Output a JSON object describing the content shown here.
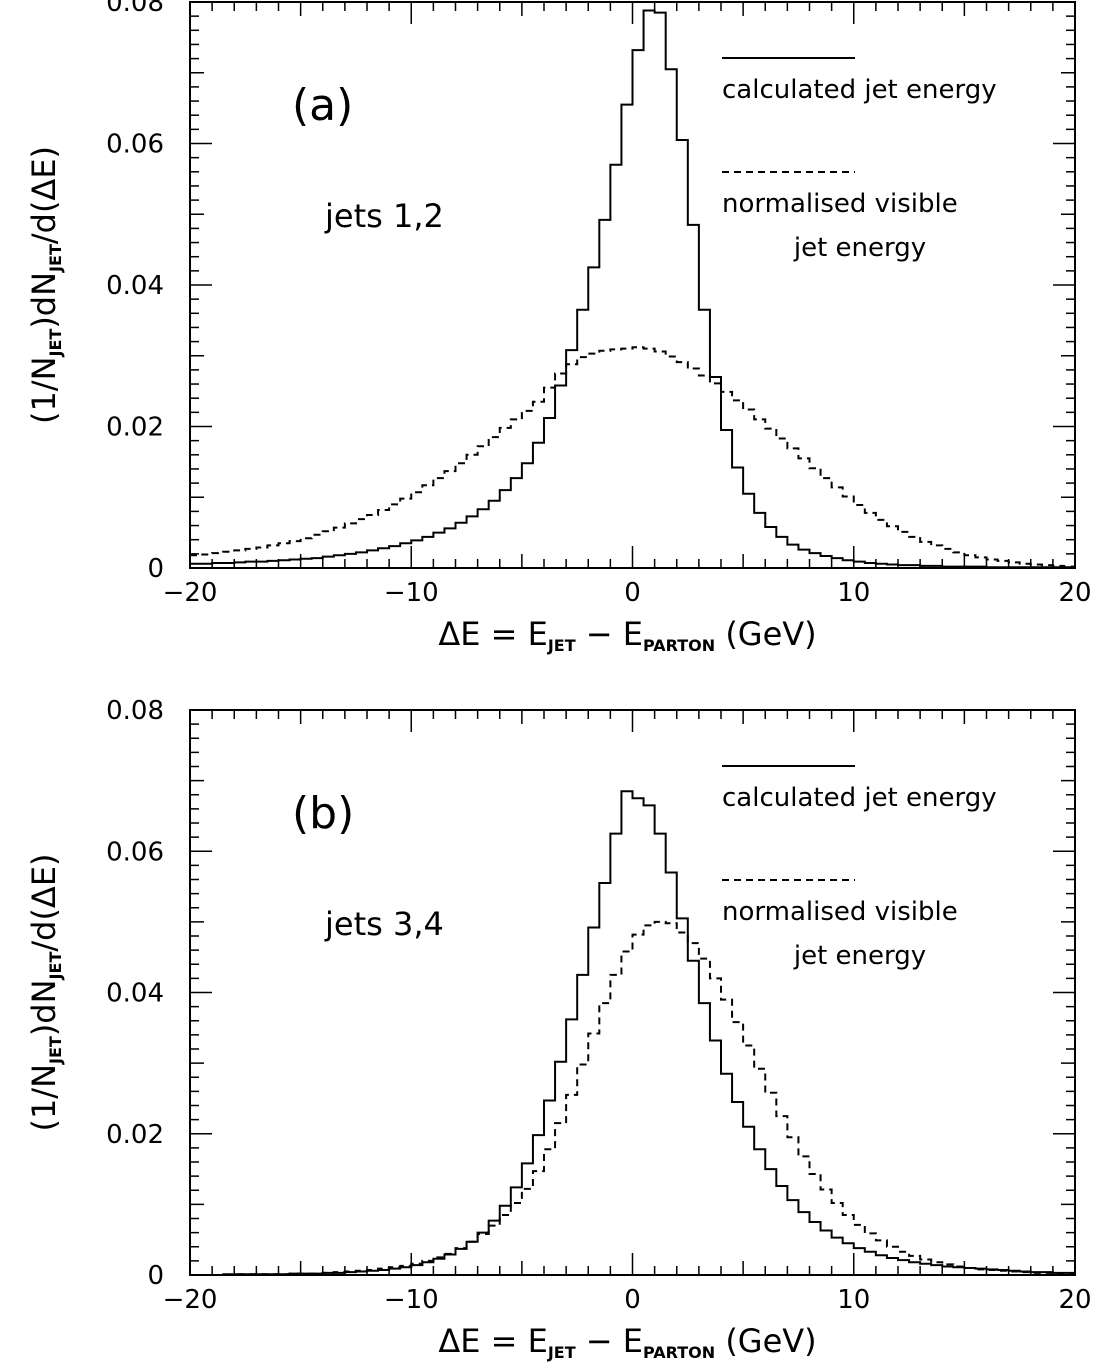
{
  "chart_data": [
    {
      "type": "line",
      "panel_label": "(a)",
      "annotation": "jets 1,2",
      "xlabel": {
        "main": "ΔE = E",
        "sub1": "JET",
        "mid": " − E",
        "sub2": "PARTON",
        "tail": " (GeV)"
      },
      "ylabel": {
        "p1": "(1/N",
        "s1": "JET",
        "p2": ")dN",
        "s2": "JET",
        "p3": "/d(ΔE)"
      },
      "xlim": [
        -20,
        20
      ],
      "ylim": [
        0,
        0.08
      ],
      "xticks": [
        -20,
        -10,
        0,
        10,
        20
      ],
      "xtick_labels": [
        "−20",
        "−10",
        "0",
        "10",
        "20"
      ],
      "yticks": [
        0,
        0.02,
        0.04,
        0.06,
        0.08
      ],
      "ytick_labels": [
        "0",
        "0.02",
        "0.04",
        "0.06",
        "0.08"
      ],
      "bin_width": 0.5,
      "x": [
        -19.75,
        -19.25,
        -18.75,
        -18.25,
        -17.75,
        -17.25,
        -16.75,
        -16.25,
        -15.75,
        -15.25,
        -14.75,
        -14.25,
        -13.75,
        -13.25,
        -12.75,
        -12.25,
        -11.75,
        -11.25,
        -10.75,
        -10.25,
        -9.75,
        -9.25,
        -8.75,
        -8.25,
        -7.75,
        -7.25,
        -6.75,
        -6.25,
        -5.75,
        -5.25,
        -4.75,
        -4.25,
        -3.75,
        -3.25,
        -2.75,
        -2.25,
        -1.75,
        -1.25,
        -0.75,
        -0.25,
        0.25,
        0.75,
        1.25,
        1.75,
        2.25,
        2.75,
        3.25,
        3.75,
        4.25,
        4.75,
        5.25,
        5.75,
        6.25,
        6.75,
        7.25,
        7.75,
        8.25,
        8.75,
        9.25,
        9.75,
        10.25,
        10.75,
        11.25,
        11.75,
        12.25,
        12.75,
        13.25,
        13.75,
        14.25,
        14.75,
        15.25,
        15.75,
        16.25,
        16.75,
        17.25,
        17.75,
        18.25,
        18.75,
        19.25,
        19.75
      ],
      "series": [
        {
          "name": "calculated jet energy",
          "style": "solid",
          "values": [
            0.0006,
            0.0006,
            0.0007,
            0.0007,
            0.0008,
            0.0009,
            0.0009,
            0.001,
            0.0011,
            0.0012,
            0.0013,
            0.0014,
            0.0016,
            0.0018,
            0.002,
            0.0022,
            0.0025,
            0.0028,
            0.0031,
            0.0035,
            0.0039,
            0.0044,
            0.005,
            0.0056,
            0.0064,
            0.0073,
            0.0083,
            0.0095,
            0.011,
            0.0127,
            0.0148,
            0.0177,
            0.0212,
            0.0258,
            0.0308,
            0.0365,
            0.0425,
            0.0492,
            0.057,
            0.0655,
            0.0732,
            0.0788,
            0.0785,
            0.0705,
            0.0605,
            0.0485,
            0.0365,
            0.027,
            0.0195,
            0.0142,
            0.0105,
            0.0078,
            0.0058,
            0.0044,
            0.0033,
            0.0026,
            0.0021,
            0.0017,
            0.0014,
            0.0011,
            0.0009,
            0.0007,
            0.0006,
            0.0005,
            0.0004,
            0.0004,
            0.0003,
            0.0003,
            0.0002,
            0.0002,
            0.0002,
            0.0002,
            0.0001,
            0.0001,
            0.0001,
            0.0001,
            0.0001,
            0.0001,
            0.0001,
            0.0001
          ]
        },
        {
          "name": "normalised visible jet energy",
          "style": "dashed",
          "values": [
            0.0018,
            0.0019,
            0.0021,
            0.0023,
            0.0025,
            0.0027,
            0.0029,
            0.0032,
            0.0035,
            0.0038,
            0.0042,
            0.0047,
            0.0052,
            0.0057,
            0.0063,
            0.0069,
            0.0075,
            0.0082,
            0.009,
            0.0098,
            0.0107,
            0.0117,
            0.0127,
            0.0137,
            0.0148,
            0.016,
            0.0172,
            0.0185,
            0.0198,
            0.021,
            0.0222,
            0.0235,
            0.0255,
            0.0275,
            0.0288,
            0.0298,
            0.0303,
            0.0307,
            0.0309,
            0.031,
            0.0312,
            0.031,
            0.0306,
            0.0299,
            0.0291,
            0.0282,
            0.0272,
            0.0261,
            0.0249,
            0.0237,
            0.0224,
            0.021,
            0.0197,
            0.0183,
            0.0169,
            0.0155,
            0.0141,
            0.0127,
            0.0114,
            0.0101,
            0.0089,
            0.0078,
            0.0068,
            0.0059,
            0.0051,
            0.0044,
            0.0037,
            0.0032,
            0.0027,
            0.0022,
            0.0018,
            0.0015,
            0.0012,
            0.001,
            0.0008,
            0.0006,
            0.0005,
            0.0004,
            0.0003,
            0.0002
          ]
        }
      ],
      "legend": [
        {
          "label_lines": [
            "calculated jet energy"
          ],
          "style": "solid"
        },
        {
          "label_lines": [
            "normalised visible",
            "jet energy"
          ],
          "style": "dashed"
        }
      ]
    },
    {
      "type": "line",
      "panel_label": "(b)",
      "annotation": "jets 3,4",
      "xlabel": {
        "main": "ΔE = E",
        "sub1": "JET",
        "mid": " − E",
        "sub2": "PARTON",
        "tail": " (GeV)"
      },
      "ylabel": {
        "p1": "(1/N",
        "s1": "JET",
        "p2": ")dN",
        "s2": "JET",
        "p3": "/d(ΔE)"
      },
      "xlim": [
        -20,
        20
      ],
      "ylim": [
        0,
        0.08
      ],
      "xticks": [
        -20,
        -10,
        0,
        10,
        20
      ],
      "xtick_labels": [
        "−20",
        "−10",
        "0",
        "10",
        "20"
      ],
      "yticks": [
        0,
        0.02,
        0.04,
        0.06,
        0.08
      ],
      "ytick_labels": [
        "0",
        "0.02",
        "0.04",
        "0.06",
        "0.08"
      ],
      "bin_width": 0.5,
      "x": [
        -19.75,
        -19.25,
        -18.75,
        -18.25,
        -17.75,
        -17.25,
        -16.75,
        -16.25,
        -15.75,
        -15.25,
        -14.75,
        -14.25,
        -13.75,
        -13.25,
        -12.75,
        -12.25,
        -11.75,
        -11.25,
        -10.75,
        -10.25,
        -9.75,
        -9.25,
        -8.75,
        -8.25,
        -7.75,
        -7.25,
        -6.75,
        -6.25,
        -5.75,
        -5.25,
        -4.75,
        -4.25,
        -3.75,
        -3.25,
        -2.75,
        -2.25,
        -1.75,
        -1.25,
        -0.75,
        -0.25,
        0.25,
        0.75,
        1.25,
        1.75,
        2.25,
        2.75,
        3.25,
        3.75,
        4.25,
        4.75,
        5.25,
        5.75,
        6.25,
        6.75,
        7.25,
        7.75,
        8.25,
        8.75,
        9.25,
        9.75,
        10.25,
        10.75,
        11.25,
        11.75,
        12.25,
        12.75,
        13.25,
        13.75,
        14.25,
        14.75,
        15.25,
        15.75,
        16.25,
        16.75,
        17.25,
        17.75,
        18.25,
        18.75,
        19.25,
        19.75
      ],
      "series": [
        {
          "name": "calculated jet energy",
          "style": "solid",
          "values": [
            0,
            0,
            0,
            0.0001,
            0.0001,
            0.0001,
            0.0001,
            0.0001,
            0.0001,
            0.0002,
            0.0002,
            0.0002,
            0.0003,
            0.0003,
            0.0004,
            0.0005,
            0.0006,
            0.0007,
            0.0009,
            0.0011,
            0.0014,
            0.0018,
            0.0023,
            0.0029,
            0.0037,
            0.0047,
            0.006,
            0.0077,
            0.0098,
            0.0124,
            0.0158,
            0.0198,
            0.0247,
            0.0302,
            0.0362,
            0.0425,
            0.0492,
            0.0555,
            0.0625,
            0.0685,
            0.0675,
            0.0665,
            0.0625,
            0.057,
            0.0505,
            0.0445,
            0.0385,
            0.0332,
            0.0285,
            0.0245,
            0.021,
            0.0178,
            0.015,
            0.0126,
            0.0106,
            0.0089,
            0.0075,
            0.0063,
            0.0053,
            0.0045,
            0.0038,
            0.0033,
            0.0028,
            0.0024,
            0.0021,
            0.0018,
            0.0016,
            0.0014,
            0.0012,
            0.0011,
            0.001,
            0.0009,
            0.0008,
            0.0007,
            0.0006,
            0.0005,
            0.0004,
            0.0004,
            0.0003,
            0.0003
          ]
        },
        {
          "name": "normalised visible jet energy",
          "style": "dashed",
          "values": [
            0,
            0,
            0,
            0,
            0.0001,
            0.0001,
            0.0001,
            0.0001,
            0.0001,
            0.0002,
            0.0002,
            0.0002,
            0.0003,
            0.0004,
            0.0005,
            0.0006,
            0.0007,
            0.0009,
            0.0011,
            0.0013,
            0.0016,
            0.002,
            0.0025,
            0.003,
            0.0038,
            0.0047,
            0.0058,
            0.007,
            0.0085,
            0.0102,
            0.0122,
            0.0147,
            0.0178,
            0.0215,
            0.0255,
            0.0298,
            0.0342,
            0.0385,
            0.0425,
            0.0458,
            0.0482,
            0.0495,
            0.05,
            0.0498,
            0.0485,
            0.047,
            0.0448,
            0.042,
            0.039,
            0.0358,
            0.0325,
            0.0292,
            0.0258,
            0.0225,
            0.0195,
            0.0168,
            0.0143,
            0.0121,
            0.0102,
            0.0085,
            0.0071,
            0.0059,
            0.0049,
            0.004,
            0.0033,
            0.0027,
            0.0022,
            0.0018,
            0.0015,
            0.0012,
            0.001,
            0.0008,
            0.0007,
            0.0006,
            0.0005,
            0.0004,
            0.0003,
            0.0003,
            0.0002,
            0.0002
          ]
        }
      ],
      "legend": [
        {
          "label_lines": [
            "calculated jet energy"
          ],
          "style": "solid"
        },
        {
          "label_lines": [
            "normalised visible",
            "jet energy"
          ],
          "style": "dashed"
        }
      ]
    }
  ]
}
